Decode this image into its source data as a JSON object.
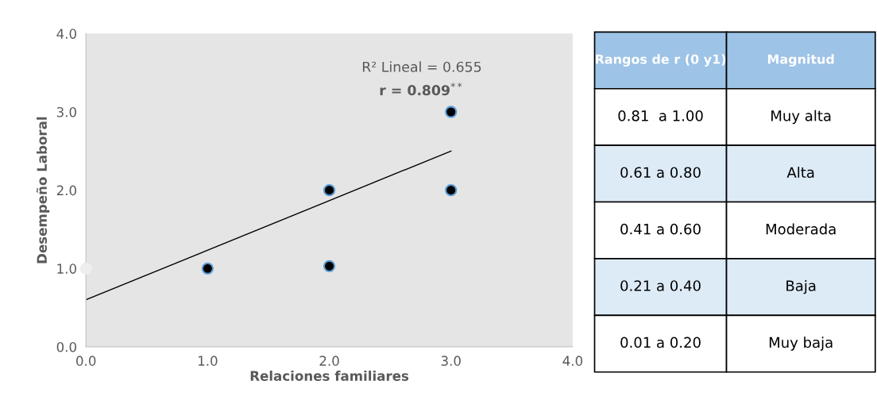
{
  "chart_data": [
    {
      "type": "scatter",
      "xlabel": "Relaciones familiares",
      "ylabel": "Desempeño Laboral",
      "xlim": [
        0,
        4
      ],
      "ylim": [
        0,
        4
      ],
      "xticks": [
        {
          "value": 0,
          "label": "0.0"
        },
        {
          "value": 1,
          "label": "1.0"
        },
        {
          "value": 2,
          "label": "2.0"
        },
        {
          "value": 3,
          "label": "3.0"
        },
        {
          "value": 4,
          "label": "4.0"
        }
      ],
      "yticks": [
        {
          "value": 0,
          "label": "0.0"
        },
        {
          "value": 1,
          "label": "1.0"
        },
        {
          "value": 2,
          "label": "2.0"
        },
        {
          "value": 3,
          "label": "3.0"
        },
        {
          "value": 4,
          "label": "4.0"
        }
      ],
      "marker": "circle",
      "grid": false,
      "legend": false,
      "series": [
        {
          "type": "scatter",
          "color": "#000000",
          "x": [
            1,
            2,
            2,
            3,
            3
          ],
          "values": [
            1,
            2,
            1.03,
            3,
            2
          ]
        },
        {
          "type": "scatter",
          "color": "#eeeeee",
          "x": [
            0
          ],
          "values": [
            1
          ]
        },
        {
          "type": "line",
          "color": "#000000",
          "marker": "none",
          "x": [
            0,
            3
          ],
          "values": [
            0.6,
            2.5
          ]
        }
      ],
      "annotations": [
        "R² Lineal = 0.655",
        "r = 0.809$^{**}$"
      ]
    },
    {
      "type": "other",
      "annotations": [
        "Rangos de r (0 y1)",
        "Magnitud",
        "0.81  a 1.00",
        "Muy alta",
        "0.61 a 0.80",
        "Alta",
        "0.41 a 0.60",
        "Moderada",
        "0.21 a 0.40",
        "Baja",
        "0.01 a 0.20",
        "Muy baja"
      ]
    }
  ]
}
